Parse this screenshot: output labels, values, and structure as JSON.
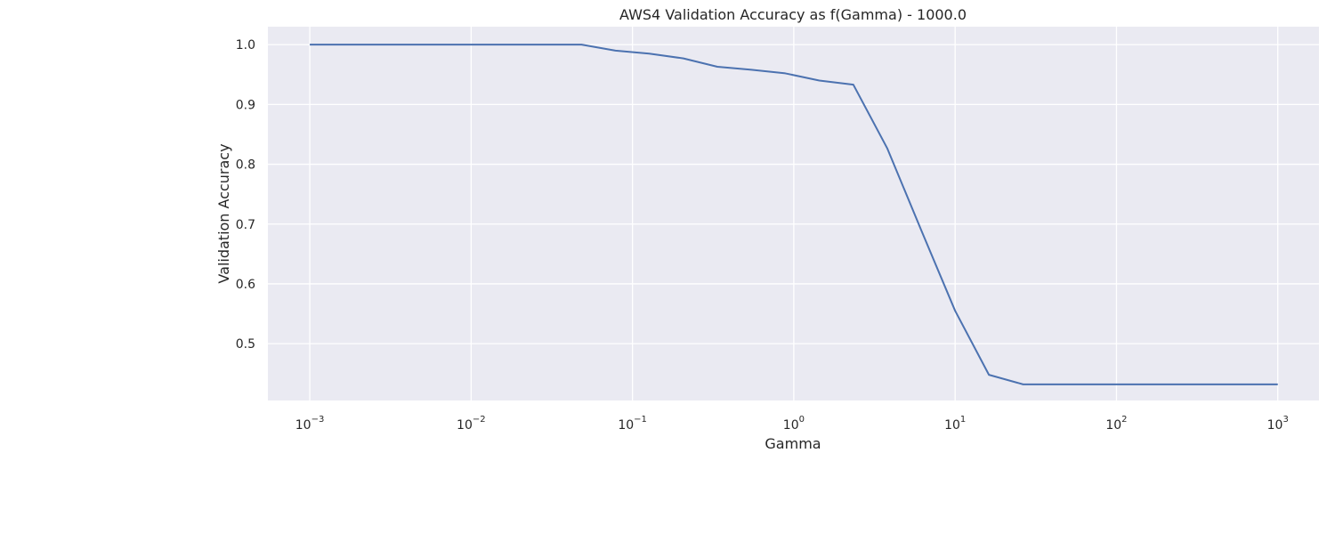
{
  "chart_data": {
    "type": "line",
    "title": "AWS4 Validation Accuracy as f(Gamma) - 1000.0",
    "xlabel": "Gamma",
    "ylabel": "Validation Accuracy",
    "x_scale": "log",
    "xlim": [
      0.00055,
      1800
    ],
    "ylim": [
      0.405,
      1.03
    ],
    "grid": true,
    "background_color": "#eaeaf2",
    "grid_color": "#ffffff",
    "line_color": "#4c72b0",
    "x_ticks": [
      {
        "value": 0.001,
        "base": "10",
        "exp": "−3"
      },
      {
        "value": 0.01,
        "base": "10",
        "exp": "−2"
      },
      {
        "value": 0.1,
        "base": "10",
        "exp": "−1"
      },
      {
        "value": 1,
        "base": "10",
        "exp": "0"
      },
      {
        "value": 10,
        "base": "10",
        "exp": "1"
      },
      {
        "value": 100,
        "base": "10",
        "exp": "2"
      },
      {
        "value": 1000,
        "base": "10",
        "exp": "3"
      }
    ],
    "y_ticks": [
      {
        "value": 0.5,
        "label": "0.5"
      },
      {
        "value": 0.6,
        "label": "0.6"
      },
      {
        "value": 0.7,
        "label": "0.7"
      },
      {
        "value": 0.8,
        "label": "0.8"
      },
      {
        "value": 0.9,
        "label": "0.9"
      },
      {
        "value": 1.0,
        "label": "1.0"
      }
    ],
    "series": [
      {
        "x": [
          0.001,
          0.00162,
          0.00264,
          0.00428,
          0.00695,
          0.0113,
          0.0183,
          0.0298,
          0.0483,
          0.0785,
          0.127,
          0.207,
          0.336,
          0.546,
          0.886,
          1.44,
          2.34,
          3.79,
          6.16,
          10.0,
          16.2,
          26.4,
          42.8,
          69.5,
          113,
          183,
          298,
          483,
          785,
          1000
        ],
        "y": [
          1.0,
          1.0,
          1.0,
          1.0,
          1.0,
          1.0,
          1.0,
          1.0,
          1.0,
          0.99,
          0.985,
          0.977,
          0.963,
          0.958,
          0.952,
          0.94,
          0.933,
          0.827,
          0.69,
          0.555,
          0.448,
          0.432,
          0.432,
          0.432,
          0.432,
          0.432,
          0.432,
          0.432,
          0.432,
          0.432
        ]
      }
    ]
  }
}
